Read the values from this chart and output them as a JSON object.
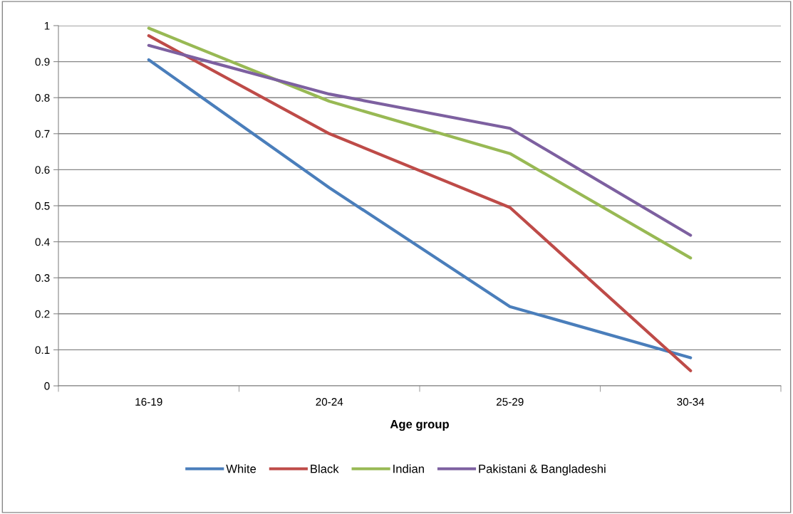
{
  "chart_data": {
    "type": "line",
    "xlabel": "Age group",
    "categories": [
      "16-19",
      "20-24",
      "25-29",
      "30-34"
    ],
    "series": [
      {
        "name": "White",
        "color": "#4a7ebb",
        "values": [
          0.905,
          0.55,
          0.22,
          0.078
        ]
      },
      {
        "name": "Black",
        "color": "#be4b48",
        "values": [
          0.972,
          0.7,
          0.495,
          0.042
        ]
      },
      {
        "name": "Indian",
        "color": "#98b954",
        "values": [
          0.993,
          0.79,
          0.645,
          0.355
        ]
      },
      {
        "name": "Pakistani & Bangladeshi",
        "color": "#7d60a0",
        "values": [
          0.945,
          0.81,
          0.715,
          0.418
        ]
      }
    ],
    "ylim": [
      0,
      1
    ],
    "yticks": [
      0,
      0.1,
      0.2,
      0.3,
      0.4,
      0.5,
      0.6,
      0.7,
      0.8,
      0.9,
      1
    ],
    "grid": "y",
    "legend": "bottom",
    "marker": "none",
    "line_style": "solid"
  }
}
